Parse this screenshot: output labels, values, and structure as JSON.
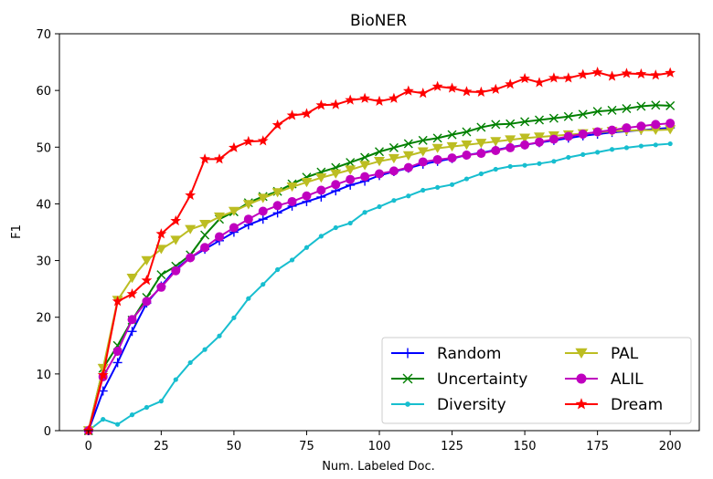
{
  "chart_data": {
    "type": "line",
    "title": "BioNER",
    "xlabel": "Num. Labeled Doc.",
    "ylabel": "F1",
    "xlim": [
      -10,
      210
    ],
    "ylim": [
      0,
      70
    ],
    "xticks": [
      0,
      25,
      50,
      75,
      100,
      125,
      150,
      175,
      200
    ],
    "yticks": [
      0,
      10,
      20,
      30,
      40,
      50,
      60,
      70
    ],
    "grid": false,
    "legend_location": "lower-right",
    "x": [
      0,
      5,
      10,
      15,
      20,
      25,
      30,
      35,
      40,
      45,
      50,
      55,
      60,
      65,
      70,
      75,
      80,
      85,
      90,
      95,
      100,
      105,
      110,
      115,
      120,
      125,
      130,
      135,
      140,
      145,
      150,
      155,
      160,
      165,
      170,
      175,
      180,
      185,
      190,
      195,
      200
    ],
    "series": [
      {
        "name": "Random",
        "color": "#0000ff",
        "marker": "plus",
        "values": [
          0,
          7.0,
          12.0,
          17.5,
          22.5,
          25.5,
          28.5,
          30.5,
          32.0,
          33.5,
          35.0,
          36.3,
          37.3,
          38.4,
          39.6,
          40.4,
          41.2,
          42.3,
          43.3,
          44.0,
          45.0,
          45.7,
          46.3,
          47.0,
          47.5,
          48.0,
          48.6,
          49.0,
          49.5,
          50.0,
          50.4,
          50.8,
          51.2,
          51.6,
          52.0,
          52.3,
          52.6,
          52.8,
          53.0,
          53.2,
          53.4
        ]
      },
      {
        "name": "Uncertainty",
        "color": "#008000",
        "marker": "x",
        "values": [
          0,
          11.0,
          15.0,
          19.5,
          23.5,
          27.5,
          29.0,
          31.0,
          34.5,
          37.3,
          38.6,
          40.2,
          41.3,
          42.2,
          43.5,
          44.7,
          45.6,
          46.4,
          47.3,
          48.2,
          49.2,
          49.9,
          50.6,
          51.2,
          51.6,
          52.2,
          52.7,
          53.5,
          54.0,
          54.1,
          54.5,
          54.8,
          55.1,
          55.4,
          55.8,
          56.3,
          56.5,
          56.8,
          57.2,
          57.4,
          57.3
        ]
      },
      {
        "name": "Diversity",
        "color": "#17becf",
        "marker": "dot",
        "values": [
          0,
          2.0,
          1.1,
          2.8,
          4.1,
          5.2,
          9.0,
          12.0,
          14.3,
          16.7,
          19.9,
          23.3,
          25.8,
          28.4,
          30.1,
          32.3,
          34.3,
          35.8,
          36.6,
          38.5,
          39.5,
          40.6,
          41.4,
          42.4,
          42.9,
          43.4,
          44.4,
          45.3,
          46.1,
          46.6,
          46.8,
          47.1,
          47.5,
          48.2,
          48.7,
          49.1,
          49.6,
          49.9,
          50.2,
          50.4,
          50.6
        ]
      },
      {
        "name": "PAL",
        "color": "#bcbd22",
        "marker": "triangle-down",
        "values": [
          0,
          11.0,
          23.0,
          26.9,
          30.0,
          32.0,
          33.6,
          35.5,
          36.4,
          37.7,
          38.7,
          39.9,
          41.0,
          42.0,
          43.0,
          43.8,
          44.6,
          45.3,
          46.0,
          46.8,
          47.5,
          48.0,
          48.5,
          49.2,
          49.8,
          50.1,
          50.4,
          50.7,
          51.0,
          51.3,
          51.6,
          51.8,
          52.0,
          52.2,
          52.4,
          52.6,
          52.8,
          52.9,
          53.0,
          53.0,
          53.1
        ]
      },
      {
        "name": "ALIL",
        "color": "#bf00bf",
        "marker": "circle",
        "values": [
          0,
          9.5,
          14.0,
          19.6,
          22.8,
          25.3,
          28.2,
          30.5,
          32.3,
          34.2,
          35.8,
          37.3,
          38.7,
          39.7,
          40.4,
          41.4,
          42.4,
          43.4,
          44.3,
          44.8,
          45.3,
          45.8,
          46.4,
          47.4,
          47.8,
          48.1,
          48.6,
          48.9,
          49.4,
          49.9,
          50.4,
          50.9,
          51.4,
          51.9,
          52.3,
          52.7,
          53.0,
          53.4,
          53.7,
          54.0,
          54.2
        ]
      },
      {
        "name": "Dream",
        "color": "#ff0000",
        "marker": "star",
        "values": [
          0,
          9.8,
          22.8,
          24.1,
          26.5,
          34.7,
          37.0,
          41.5,
          47.9,
          47.9,
          49.9,
          51.0,
          51.1,
          53.9,
          55.6,
          55.9,
          57.4,
          57.5,
          58.3,
          58.6,
          58.1,
          58.6,
          59.9,
          59.5,
          60.7,
          60.4,
          59.8,
          59.7,
          60.2,
          61.1,
          62.1,
          61.4,
          62.2,
          62.2,
          62.8,
          63.2,
          62.5,
          63.0,
          62.9,
          62.7,
          63.1
        ]
      }
    ]
  }
}
